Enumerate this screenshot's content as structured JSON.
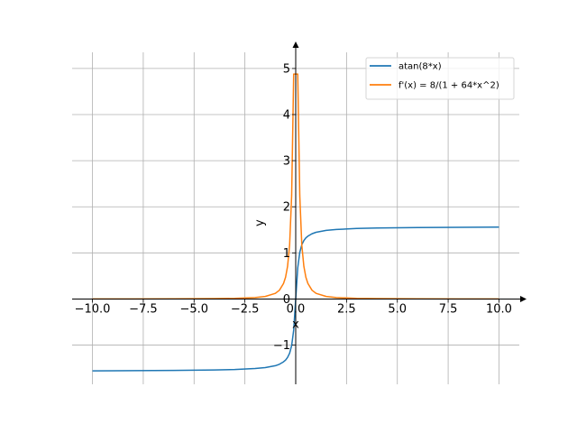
{
  "chart_data": {
    "type": "line",
    "title": "",
    "xlabel": "x",
    "ylabel": "y",
    "xlim": [
      -11,
      11
    ],
    "ylim": [
      -1.85,
      5.35
    ],
    "xticks": [
      -10,
      -7.5,
      -5,
      -2.5,
      0,
      2.5,
      5,
      7.5,
      10
    ],
    "xtick_labels": [
      "−10.0",
      "−7.5",
      "−5.0",
      "−2.5",
      "0.0",
      "2.5",
      "5.0",
      "7.5",
      "10.0"
    ],
    "yticks": [
      -1,
      0,
      1,
      2,
      3,
      4,
      5
    ],
    "ytick_labels": [
      "−1",
      "0",
      "1",
      "2",
      "3",
      "4",
      "5"
    ],
    "grid": true,
    "legend_position": "top-right",
    "series": [
      {
        "name": "atan(8*x)",
        "color": "#1f77b4",
        "x": [
          -10,
          -8,
          -6,
          -4,
          -3,
          -2,
          -1.5,
          -1,
          -0.8,
          -0.6,
          -0.5,
          -0.4,
          -0.3,
          -0.2,
          -0.1,
          0,
          0.1,
          0.2,
          0.3,
          0.4,
          0.5,
          0.6,
          0.8,
          1,
          1.5,
          2,
          3,
          4,
          6,
          8,
          10
        ],
        "y": [
          -1.558,
          -1.555,
          -1.55,
          -1.54,
          -1.529,
          -1.508,
          -1.488,
          -1.447,
          -1.415,
          -1.363,
          -1.326,
          -1.267,
          -1.176,
          -1.012,
          -0.675,
          0,
          0.675,
          1.012,
          1.176,
          1.267,
          1.326,
          1.363,
          1.415,
          1.447,
          1.488,
          1.508,
          1.529,
          1.54,
          1.55,
          1.555,
          1.558
        ]
      },
      {
        "name": "f'(x) = 8/(1 + 64*x^2)",
        "color": "#ff7f0e",
        "x": [
          -10,
          -8,
          -6,
          -4,
          -3,
          -2,
          -1.5,
          -1,
          -0.8,
          -0.6,
          -0.5,
          -0.4,
          -0.3,
          -0.2,
          -0.1,
          -0.05,
          0.05,
          0.1,
          0.2,
          0.3,
          0.4,
          0.5,
          0.6,
          0.8,
          1,
          1.5,
          2,
          3,
          4,
          6,
          8,
          10
        ],
        "y": [
          0.00125,
          0.00195,
          0.00347,
          0.00781,
          0.0139,
          0.0312,
          0.0554,
          0.123,
          0.191,
          0.336,
          0.471,
          0.71,
          1.17,
          2.24,
          4.878,
          4.878,
          4.878,
          4.878,
          2.24,
          1.17,
          0.71,
          0.471,
          0.336,
          0.191,
          0.123,
          0.0554,
          0.0312,
          0.0139,
          0.00781,
          0.00347,
          0.00195,
          0.00125
        ]
      }
    ]
  }
}
